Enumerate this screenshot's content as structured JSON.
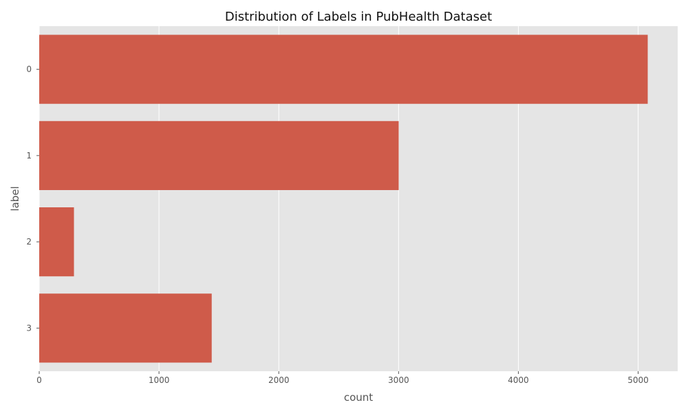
{
  "chart_data": {
    "type": "bar",
    "orientation": "horizontal",
    "title": "Distribution of Labels in PubHealth Dataset",
    "xlabel": "count",
    "ylabel": "label",
    "categories": [
      "0",
      "1",
      "2",
      "3"
    ],
    "values": [
      5080,
      3001,
      290,
      1440
    ],
    "xlim": [
      0,
      5330
    ],
    "xticks": [
      0,
      1000,
      2000,
      3000,
      4000,
      5000
    ],
    "grid": true,
    "colors": {
      "bar": "#CF5B4A",
      "plot_background": "#E5E5E5",
      "grid": "#FFFFFF"
    }
  }
}
